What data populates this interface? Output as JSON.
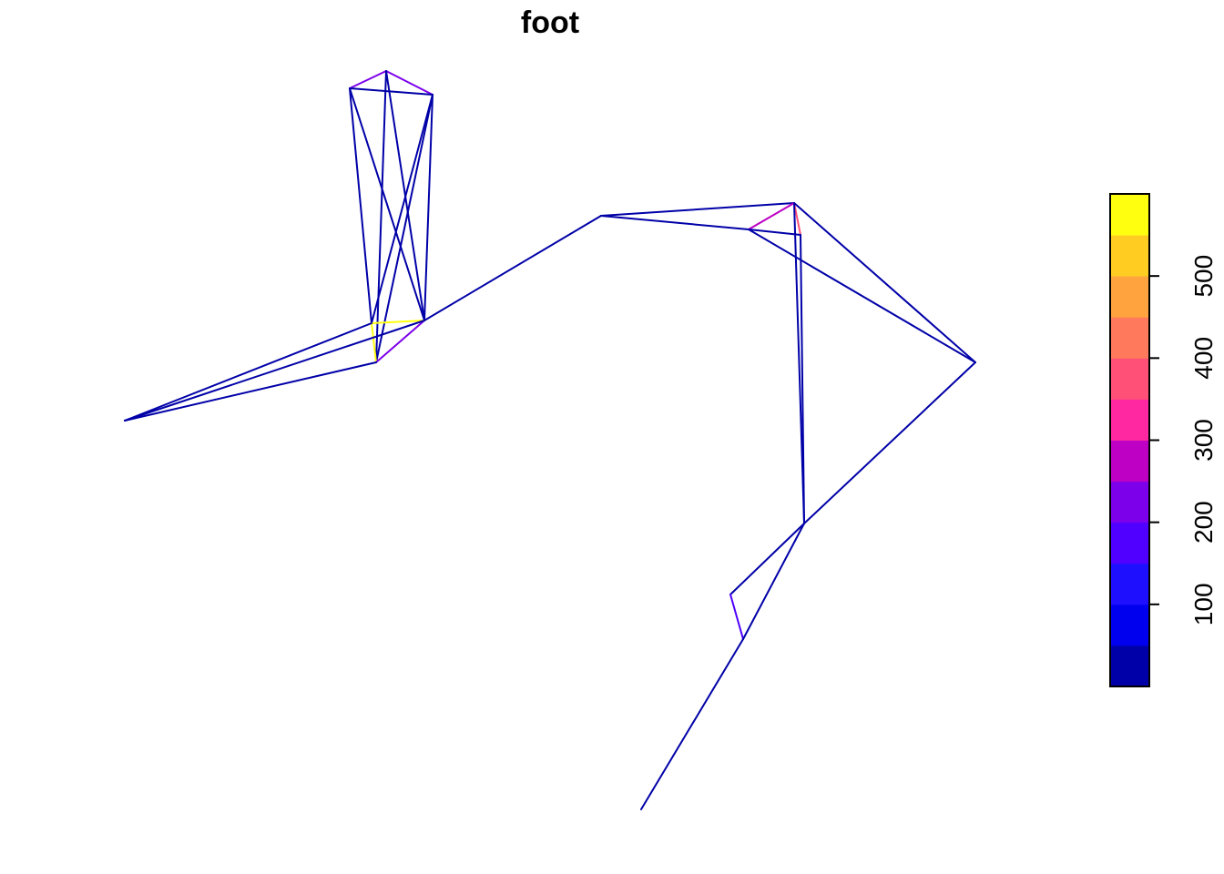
{
  "chart_data": {
    "type": "line",
    "title": "foot",
    "xlabel": "",
    "ylabel": "",
    "grid": false,
    "legend": {
      "type": "colorbar",
      "placement": "right",
      "range": [
        0,
        600
      ],
      "breaks": [
        0,
        50,
        100,
        150,
        200,
        250,
        300,
        350,
        400,
        450,
        500,
        550,
        600
      ],
      "colors": [
        "#0000A8",
        "#0000EE",
        "#1E10FF",
        "#4F00FF",
        "#7C00EA",
        "#BD00C4",
        "#FF28A0",
        "#FF5078",
        "#FF7A5C",
        "#FFA33E",
        "#FFCC22",
        "#FFFF10"
      ],
      "tick_labels": [
        "100",
        "200",
        "300",
        "400",
        "500"
      ],
      "tick_values": [
        100,
        200,
        300,
        400,
        500
      ]
    },
    "series": [
      {
        "from": [
          384,
          97
        ],
        "to": [
          424,
          78
        ],
        "value": 230
      },
      {
        "from": [
          424,
          78
        ],
        "to": [
          475,
          104
        ],
        "value": 230
      },
      {
        "from": [
          384,
          97
        ],
        "to": [
          475,
          104
        ],
        "value": 10
      },
      {
        "from": [
          384,
          97
        ],
        "to": [
          408,
          355
        ],
        "value": 10
      },
      {
        "from": [
          384,
          97
        ],
        "to": [
          466,
          352
        ],
        "value": 10
      },
      {
        "from": [
          424,
          78
        ],
        "to": [
          413,
          398
        ],
        "value": 10
      },
      {
        "from": [
          424,
          78
        ],
        "to": [
          466,
          352
        ],
        "value": 10
      },
      {
        "from": [
          475,
          104
        ],
        "to": [
          408,
          355
        ],
        "value": 10
      },
      {
        "from": [
          475,
          104
        ],
        "to": [
          413,
          398
        ],
        "value": 10
      },
      {
        "from": [
          475,
          104
        ],
        "to": [
          466,
          352
        ],
        "value": 10
      },
      {
        "from": [
          408,
          355
        ],
        "to": [
          466,
          352
        ],
        "value": 580
      },
      {
        "from": [
          408,
          355
        ],
        "to": [
          413,
          398
        ],
        "value": 580
      },
      {
        "from": [
          466,
          352
        ],
        "to": [
          413,
          398
        ],
        "value": 240
      },
      {
        "from": [
          408,
          355
        ],
        "to": [
          137,
          462
        ],
        "value": 10
      },
      {
        "from": [
          413,
          398
        ],
        "to": [
          137,
          462
        ],
        "value": 10
      },
      {
        "from": [
          466,
          352
        ],
        "to": [
          137,
          462
        ],
        "value": 10
      },
      {
        "from": [
          466,
          352
        ],
        "to": [
          660,
          237
        ],
        "value": 10
      },
      {
        "from": [
          660,
          237
        ],
        "to": [
          872,
          223
        ],
        "value": 10
      },
      {
        "from": [
          660,
          237
        ],
        "to": [
          822,
          252
        ],
        "value": 10
      },
      {
        "from": [
          822,
          252
        ],
        "to": [
          872,
          223
        ],
        "value": 260
      },
      {
        "from": [
          872,
          223
        ],
        "to": [
          879,
          258
        ],
        "value": 360
      },
      {
        "from": [
          822,
          252
        ],
        "to": [
          879,
          258
        ],
        "value": 10
      },
      {
        "from": [
          872,
          223
        ],
        "to": [
          1071,
          398
        ],
        "value": 10
      },
      {
        "from": [
          822,
          252
        ],
        "to": [
          1071,
          398
        ],
        "value": 10
      },
      {
        "from": [
          872,
          223
        ],
        "to": [
          883,
          575
        ],
        "value": 10
      },
      {
        "from": [
          879,
          258
        ],
        "to": [
          883,
          575
        ],
        "value": 10
      },
      {
        "from": [
          1071,
          398
        ],
        "to": [
          883,
          575
        ],
        "value": 10
      },
      {
        "from": [
          883,
          575
        ],
        "to": [
          802,
          653
        ],
        "value": 10
      },
      {
        "from": [
          802,
          653
        ],
        "to": [
          816,
          702
        ],
        "value": 170
      },
      {
        "from": [
          883,
          575
        ],
        "to": [
          816,
          702
        ],
        "value": 10
      },
      {
        "from": [
          816,
          702
        ],
        "to": [
          704,
          889
        ],
        "value": 10
      }
    ]
  }
}
